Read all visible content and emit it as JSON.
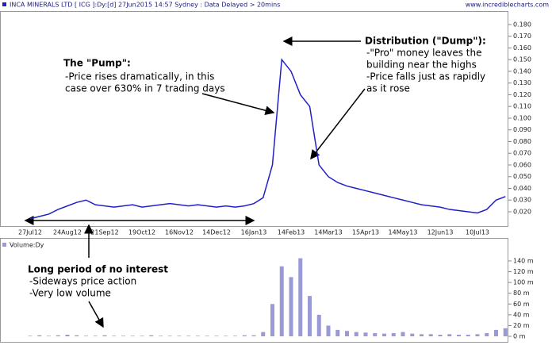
{
  "source": "www.incrediblecharts.com",
  "chart_data": [
    {
      "type": "line",
      "title": "INCA MINERALS LTD [ ICG ]:Dy:[d]  27Jun2015 14:57 Sydney : Data Delayed > 20mins",
      "categories": [
        "27Jul12",
        null,
        null,
        null,
        "24Aug12",
        null,
        null,
        null,
        "21Sep12",
        null,
        null,
        null,
        "19Oct12",
        null,
        null,
        null,
        "16Nov12",
        null,
        null,
        null,
        "14Dec12",
        null,
        null,
        null,
        "16Jan13",
        null,
        null,
        null,
        "14Feb13",
        null,
        null,
        null,
        "14Mar13",
        null,
        null,
        null,
        "15Apr13",
        null,
        null,
        null,
        "14May13",
        null,
        null,
        null,
        "12Jun13",
        null,
        null,
        null,
        "10Jul13",
        null,
        null,
        null
      ],
      "series": [
        {
          "color": "#2020c8",
          "values": [
            0.014,
            0.016,
            0.018,
            0.022,
            0.025,
            0.028,
            0.03,
            0.026,
            0.025,
            0.024,
            0.025,
            0.026,
            0.024,
            0.025,
            0.026,
            0.027,
            0.026,
            0.025,
            0.026,
            0.025,
            0.024,
            0.025,
            0.024,
            0.025,
            0.027,
            0.032,
            0.06,
            0.15,
            0.14,
            0.12,
            0.11,
            0.06,
            0.05,
            0.045,
            0.042,
            0.04,
            0.038,
            0.036,
            0.034,
            0.032,
            0.03,
            0.028,
            0.026,
            0.025,
            0.024,
            0.022,
            0.021,
            0.02,
            0.019,
            0.022,
            0.03,
            0.033
          ]
        }
      ],
      "ylim": [
        0.0078,
        0.1908
      ],
      "yticks": [
        {
          "value": 0.02,
          "label": "0.020"
        },
        {
          "value": 0.03,
          "label": "0.030"
        },
        {
          "value": 0.04,
          "label": "0.040"
        },
        {
          "value": 0.05,
          "label": "0.050"
        },
        {
          "value": 0.06,
          "label": "0.060"
        },
        {
          "value": 0.07,
          "label": "0.070"
        },
        {
          "value": 0.08,
          "label": "0.080"
        },
        {
          "value": 0.09,
          "label": "0.090"
        },
        {
          "value": 0.1,
          "label": "0.100"
        },
        {
          "value": 0.11,
          "label": "0.110"
        },
        {
          "value": 0.12,
          "label": "0.120"
        },
        {
          "value": 0.13,
          "label": "0.130"
        },
        {
          "value": 0.14,
          "label": "0.140"
        },
        {
          "value": 0.15,
          "label": "0.150"
        },
        {
          "value": 0.16,
          "label": "0.160"
        },
        {
          "value": 0.17,
          "label": "0.170"
        },
        {
          "value": 0.18,
          "label": "0.180"
        }
      ],
      "annotations": [
        {
          "title": "The \"Pump\":",
          "lines": [
            "-Price rises dramatically, in this",
            "case over 630% in 7 trading days"
          ]
        },
        {
          "title": "Distribution (\"Dump\"):",
          "lines": [
            "-\"Pro\" money leaves the",
            "building near the highs",
            "-Price falls just as rapidly",
            "as it rose"
          ]
        },
        {
          "title": "Long period of no interest",
          "lines": [
            "-Sideways price action",
            "-Very low volume"
          ]
        }
      ]
    },
    {
      "type": "bar",
      "title": "Volume:Dy",
      "color": "#9a9ad6",
      "values": [
        1,
        2,
        1,
        2,
        3,
        2,
        1,
        1,
        2,
        1,
        1,
        1,
        1,
        2,
        1,
        1,
        1,
        1,
        1,
        1,
        1,
        1,
        1,
        2,
        2,
        8,
        60,
        130,
        110,
        145,
        75,
        40,
        20,
        12,
        10,
        8,
        7,
        6,
        5,
        6,
        8,
        5,
        4,
        4,
        3,
        4,
        3,
        3,
        4,
        6,
        12,
        15
      ],
      "ylim": [
        -8.8,
        178.3
      ],
      "yticks": [
        {
          "value": 0,
          "label": "0 m"
        },
        {
          "value": 20,
          "label": "20 m"
        },
        {
          "value": 40,
          "label": "40 m"
        },
        {
          "value": 60,
          "label": "60 m"
        },
        {
          "value": 80,
          "label": "80 m"
        },
        {
          "value": 100,
          "label": "100 m"
        },
        {
          "value": 120,
          "label": "120 m"
        },
        {
          "value": 140,
          "label": "140 m"
        }
      ]
    }
  ]
}
